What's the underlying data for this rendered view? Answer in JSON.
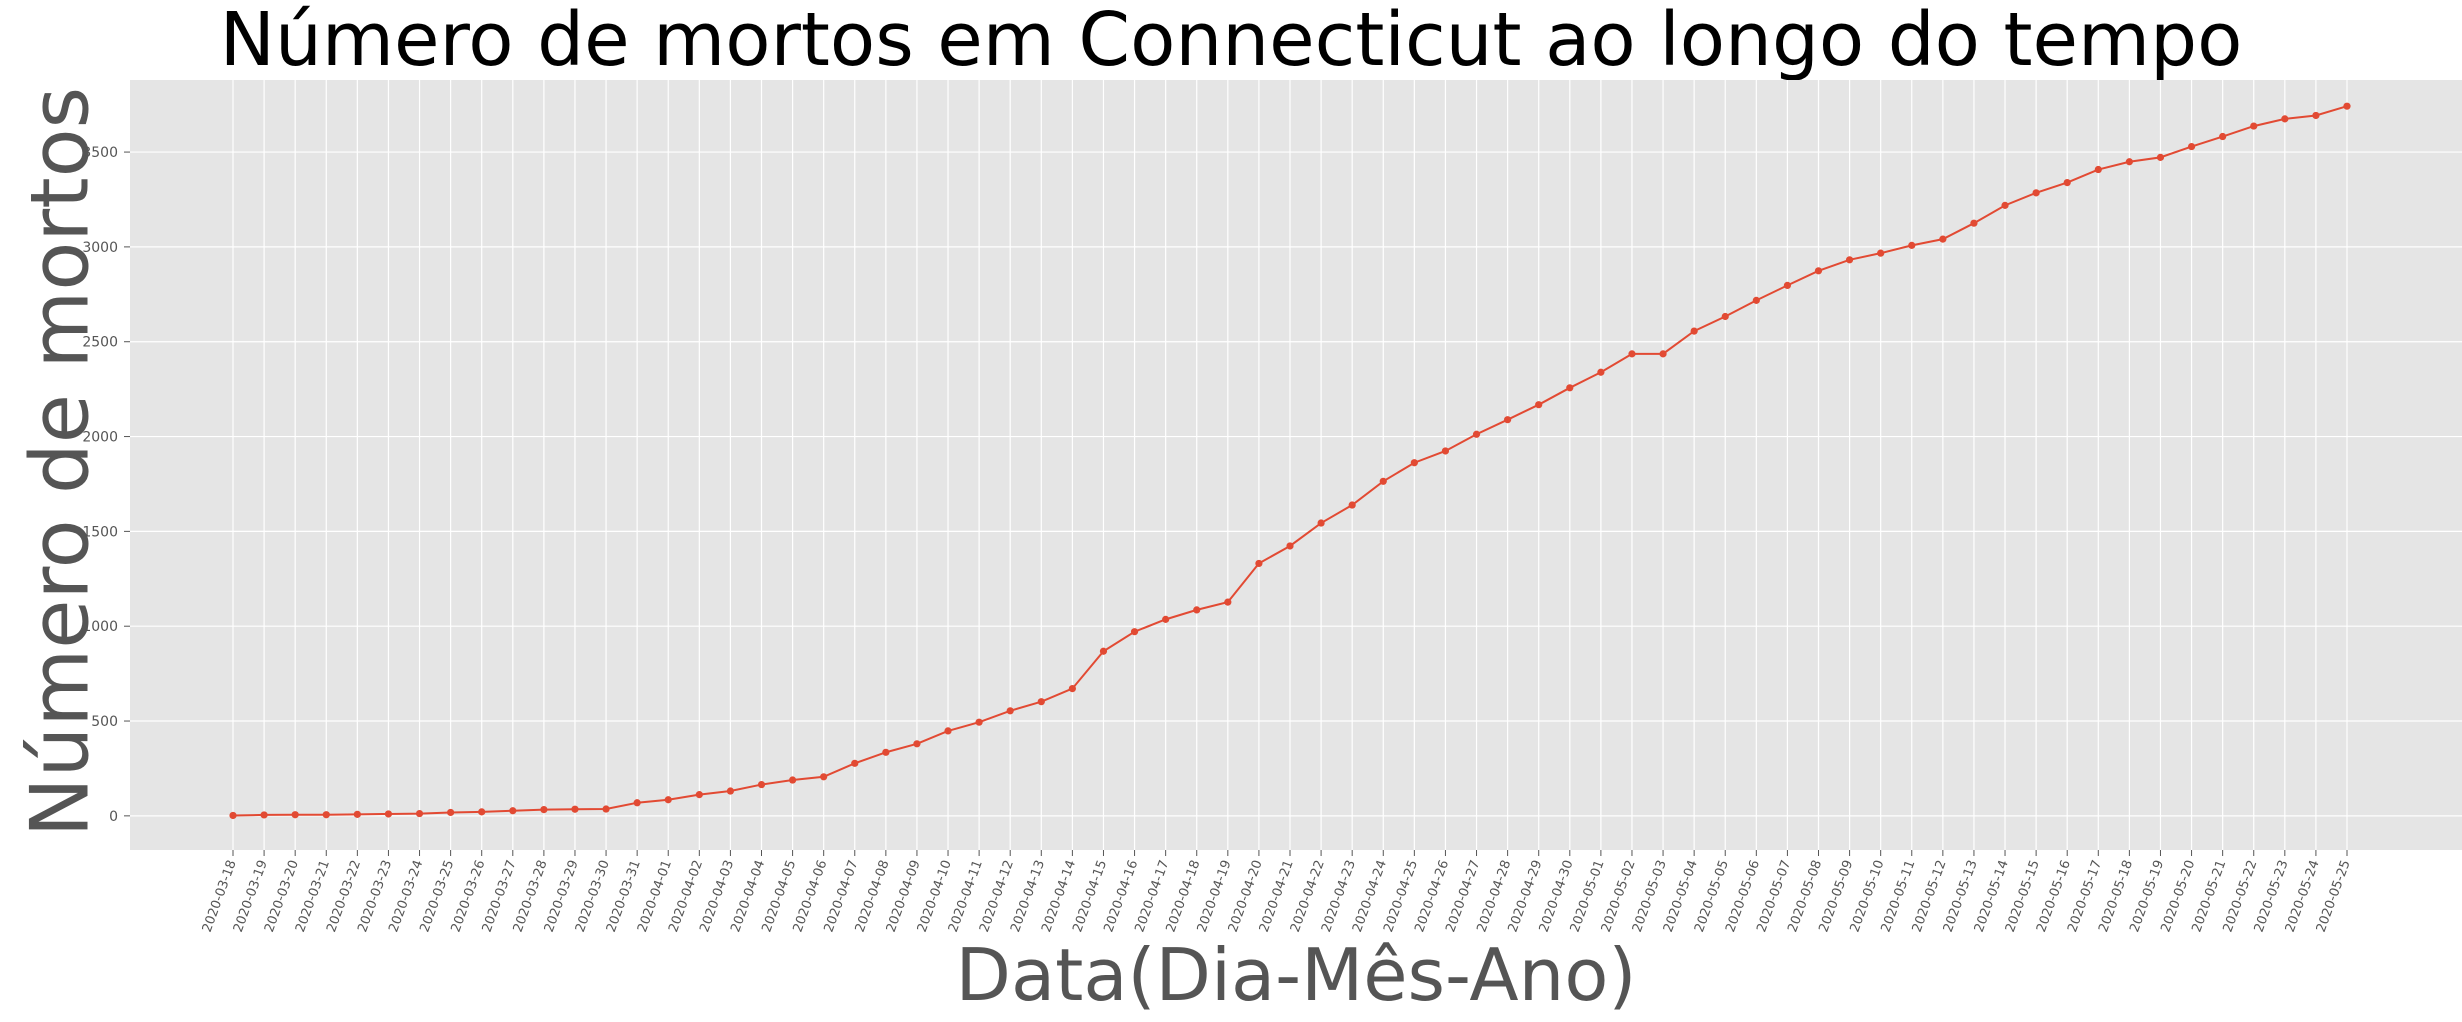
{
  "chart_data": {
    "type": "line",
    "title": "Número de mortos em Connecticut ao longo do tempo",
    "xlabel": "Data(Dia-Mês-Ano)",
    "ylabel": "Número de mortos",
    "ylim": [
      -180,
      3880
    ],
    "yticks": [
      0,
      500,
      1000,
      1500,
      2000,
      2500,
      3000,
      3500
    ],
    "grid": true,
    "x": [
      "2020-03-18",
      "2020-03-19",
      "2020-03-20",
      "2020-03-21",
      "2020-03-22",
      "2020-03-23",
      "2020-03-24",
      "2020-03-25",
      "2020-03-26",
      "2020-03-27",
      "2020-03-28",
      "2020-03-29",
      "2020-03-30",
      "2020-03-31",
      "2020-04-01",
      "2020-04-02",
      "2020-04-03",
      "2020-04-04",
      "2020-04-05",
      "2020-04-06",
      "2020-04-07",
      "2020-04-08",
      "2020-04-09",
      "2020-04-10",
      "2020-04-11",
      "2020-04-12",
      "2020-04-13",
      "2020-04-14",
      "2020-04-15",
      "2020-04-16",
      "2020-04-17",
      "2020-04-18",
      "2020-04-19",
      "2020-04-20",
      "2020-04-21",
      "2020-04-22",
      "2020-04-23",
      "2020-04-24",
      "2020-04-25",
      "2020-04-26",
      "2020-04-27",
      "2020-04-28",
      "2020-04-29",
      "2020-04-30",
      "2020-05-01",
      "2020-05-02",
      "2020-05-03",
      "2020-05-04",
      "2020-05-05",
      "2020-05-06",
      "2020-05-07",
      "2020-05-08",
      "2020-05-09",
      "2020-05-10",
      "2020-05-11",
      "2020-05-12",
      "2020-05-13",
      "2020-05-14",
      "2020-05-15",
      "2020-05-16",
      "2020-05-17",
      "2020-05-18",
      "2020-05-19",
      "2020-05-20",
      "2020-05-21",
      "2020-05-22",
      "2020-05-23",
      "2020-05-24",
      "2020-05-25"
    ],
    "series": [
      {
        "color": "#e24a33",
        "values": [
          2,
          5,
          6,
          6,
          8,
          10,
          12,
          18,
          21,
          27,
          33,
          35,
          36,
          69,
          85,
          112,
          131,
          165,
          189,
          206,
          277,
          335,
          380,
          448,
          494,
          554,
          602,
          671,
          868,
          971,
          1036,
          1086,
          1127,
          1331,
          1423,
          1544,
          1639,
          1764,
          1862,
          1924,
          2012,
          2089,
          2168,
          2257,
          2339,
          2436,
          2436,
          2556,
          2633,
          2718,
          2797,
          2874,
          2932,
          2967,
          3008,
          3041,
          3125,
          3219,
          3285,
          3339,
          3408,
          3449,
          3472,
          3529,
          3582,
          3637,
          3675,
          3693,
          3742
        ]
      }
    ]
  }
}
